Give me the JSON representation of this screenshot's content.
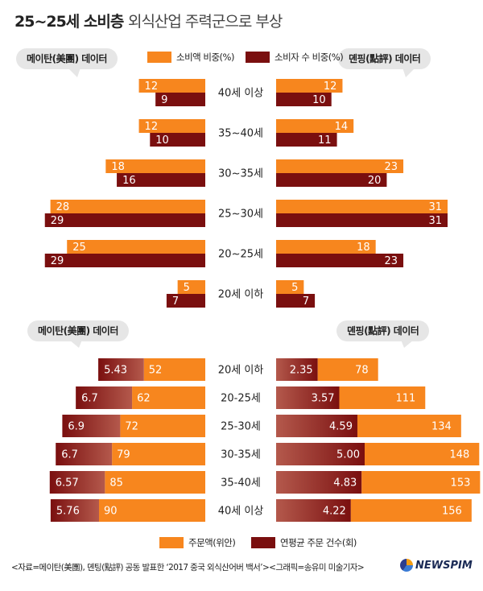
{
  "title": {
    "main": "25~25세 소비층",
    "sub": "외식산업 주력군으로 부상"
  },
  "labels": {
    "mei_top": "메이탄(美團) 데이터",
    "dian_top": "뎬핑(點評) 데이터",
    "mei_bottom": "메이탄(美團) 데이터",
    "dian_bottom": "뎬핑(點評) 데이터"
  },
  "legend_top": {
    "spend": "소비액 비중(%)",
    "consumers": "소비자 수 비중(%)"
  },
  "legend_bottom": {
    "amount": "주문액(위안)",
    "count": "연평균 주문 건수(회)"
  },
  "colors": {
    "orange": "#f7861e",
    "darkred": "#7a0f0f"
  },
  "chart_data": [
    {
      "type": "bar",
      "title": "메이탄(美團) 데이터",
      "categories": [
        "40세 이상",
        "35~40세",
        "30~35세",
        "25~30세",
        "20~25세",
        "20세 이하"
      ],
      "series": [
        {
          "name": "소비액 비중(%)",
          "values": [
            12,
            12,
            18,
            28,
            25,
            5
          ]
        },
        {
          "name": "소비자 수 비중(%)",
          "values": [
            9,
            10,
            16,
            29,
            29,
            7
          ]
        }
      ]
    },
    {
      "type": "bar",
      "title": "뎬핑(點評) 데이터",
      "categories": [
        "40세 이상",
        "35~40세",
        "30~35세",
        "25~30세",
        "20~25세",
        "20세 이하"
      ],
      "series": [
        {
          "name": "소비액 비중(%)",
          "values": [
            12,
            14,
            23,
            31,
            18,
            5
          ]
        },
        {
          "name": "소비자 수 비중(%)",
          "values": [
            10,
            11,
            20,
            31,
            23,
            7
          ]
        }
      ]
    },
    {
      "type": "bar",
      "title": "메이탄(美團) 데이터",
      "categories": [
        "20세 이하",
        "20-25세",
        "25-30세",
        "30-35세",
        "35-40세",
        "40세 이상"
      ],
      "series": [
        {
          "name": "주문액(위안)",
          "values": [
            52,
            62,
            72,
            79,
            85,
            90
          ]
        },
        {
          "name": "연평균 주문 건수(회)",
          "values": [
            "5.43",
            "6.7",
            "6.9",
            "6.7",
            "6.57",
            "5.76"
          ]
        }
      ]
    },
    {
      "type": "bar",
      "title": "뎬핑(點評) 데이터",
      "categories": [
        "20세 이하",
        "20-25세",
        "25-30세",
        "30-35세",
        "35-40세",
        "40세 이상"
      ],
      "series": [
        {
          "name": "주문액(위안)",
          "values": [
            78,
            111,
            134,
            148,
            153,
            156
          ]
        },
        {
          "name": "연평균 주문 건수(회)",
          "values": [
            "2.35",
            "3.57",
            "4.59",
            "5.00",
            "4.83",
            "4.22"
          ]
        }
      ]
    }
  ],
  "footer": "<자료=메이탄(美團), 뎬팅(點評) 공동 발표한 ‘2017 중국 외식산어버 백서’><그래픽=송유미 미술기자>",
  "brand": "NEWSPIM"
}
